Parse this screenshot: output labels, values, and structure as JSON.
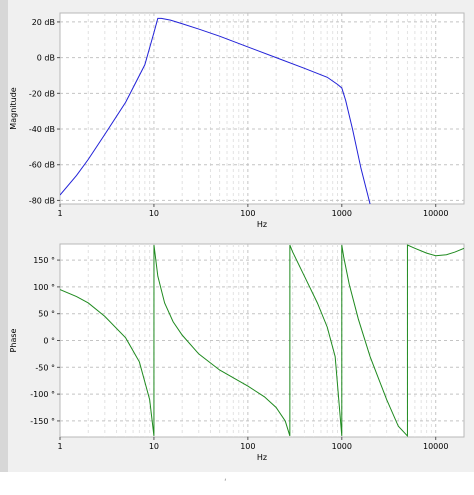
{
  "chart_data": [
    {
      "type": "line",
      "xlabel": "Hz",
      "ylabel": "Magnitude",
      "xscale": "log",
      "xlim": [
        1,
        20000
      ],
      "ylim": [
        -82,
        25
      ],
      "xticks": [
        "1",
        "10",
        "100",
        "1000",
        "10000"
      ],
      "yticks": [
        "20 dB",
        "0 dB",
        "-20 dB",
        "-40 dB",
        "-60 dB",
        "-80 dB"
      ],
      "grid": true,
      "colors": {
        "line": "#2222d8"
      },
      "series": [
        {
          "x": [
            1,
            1.5,
            2,
            3,
            5,
            8,
            10,
            11,
            12,
            15,
            20,
            30,
            50,
            100,
            200,
            400,
            700,
            900,
            1000,
            1100,
            1300,
            1600,
            2000
          ],
          "y": [
            -77,
            -66,
            -57,
            -43,
            -25,
            -4,
            14,
            22,
            22,
            21,
            19,
            16,
            12,
            6,
            0,
            -6,
            -11,
            -15,
            -17,
            -24,
            -40,
            -62,
            -82
          ]
        }
      ]
    },
    {
      "type": "line",
      "xlabel": "Hz",
      "ylabel": "Phase",
      "xscale": "log",
      "xlim": [
        1,
        20000
      ],
      "ylim": [
        -180,
        180
      ],
      "xticks": [
        "1",
        "10",
        "100",
        "1000",
        "10000"
      ],
      "yticks": [
        "150 °",
        "100 °",
        "50 °",
        "0 °",
        "-50 °",
        "-100 °",
        "-150 °"
      ],
      "grid": true,
      "colors": {
        "line": "#1f8a1f"
      },
      "series": [
        {
          "x": [
            1,
            1.5,
            2,
            3,
            5,
            7,
            9,
            10,
            10.01,
            11,
            13,
            16,
            20,
            30,
            50,
            100,
            150,
            200,
            250,
            280,
            280.01,
            300,
            400,
            550,
            700,
            850,
            1000,
            1000.01,
            1050,
            1200,
            1500,
            2000,
            3000,
            4000,
            5000,
            5000.01,
            6000,
            8000,
            10000,
            13000,
            16000,
            20000
          ],
          "y": [
            95,
            82,
            70,
            45,
            5,
            -40,
            -110,
            -178,
            178,
            120,
            70,
            35,
            10,
            -25,
            -55,
            -85,
            -105,
            -125,
            -150,
            -178,
            178,
            165,
            120,
            70,
            25,
            -30,
            -178,
            178,
            155,
            105,
            40,
            -30,
            -110,
            -160,
            -178,
            178,
            172,
            163,
            158,
            160,
            165,
            172
          ]
        }
      ]
    }
  ]
}
